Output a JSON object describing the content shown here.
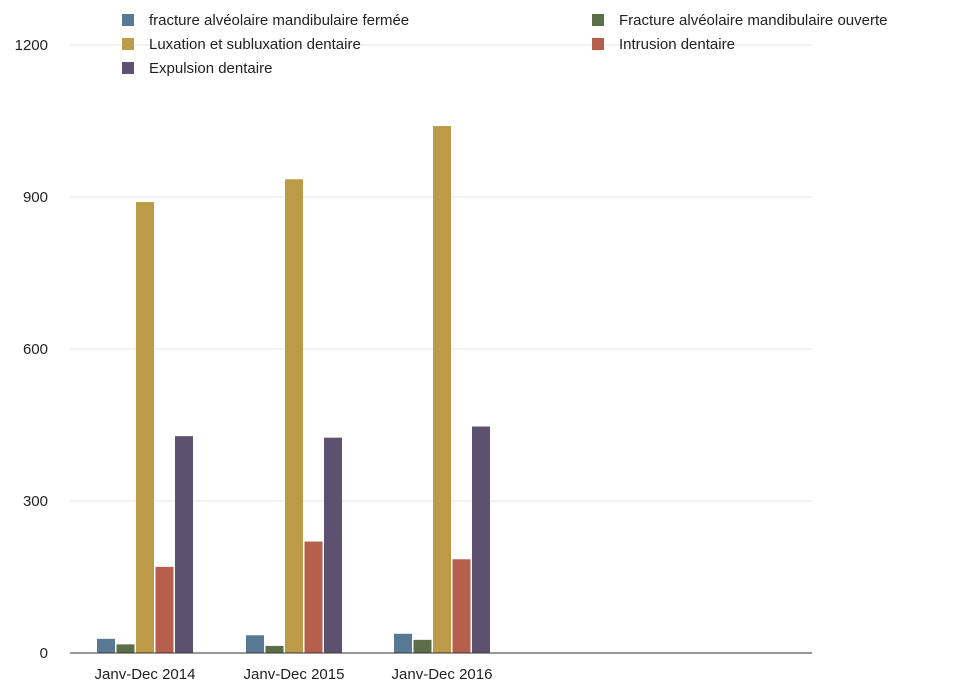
{
  "chart_data": {
    "type": "bar",
    "categories": [
      "Janv-Dec 2014",
      "Janv-Dec 2015",
      "Janv-Dec 2016"
    ],
    "series": [
      {
        "name": "fracture alvéolaire mandibulaire fermée",
        "color": "#587994",
        "values": [
          28,
          35,
          38
        ]
      },
      {
        "name": "Fracture alvéolaire mandibulaire ouverte",
        "color": "#5b6e47",
        "values": [
          17,
          14,
          26
        ]
      },
      {
        "name": "Luxation et subluxation dentaire",
        "color": "#bd9a47",
        "values": [
          890,
          935,
          1040
        ]
      },
      {
        "name": "Intrusion dentaire",
        "color": "#b55f4c",
        "values": [
          170,
          220,
          185
        ]
      },
      {
        "name": "Expulsion dentaire",
        "color": "#5c5270",
        "values": [
          428,
          425,
          447
        ]
      }
    ],
    "yticks": [
      0,
      300,
      600,
      900,
      1200
    ],
    "ylim": [
      0,
      1200
    ],
    "grid": true,
    "legend_position": "top"
  }
}
